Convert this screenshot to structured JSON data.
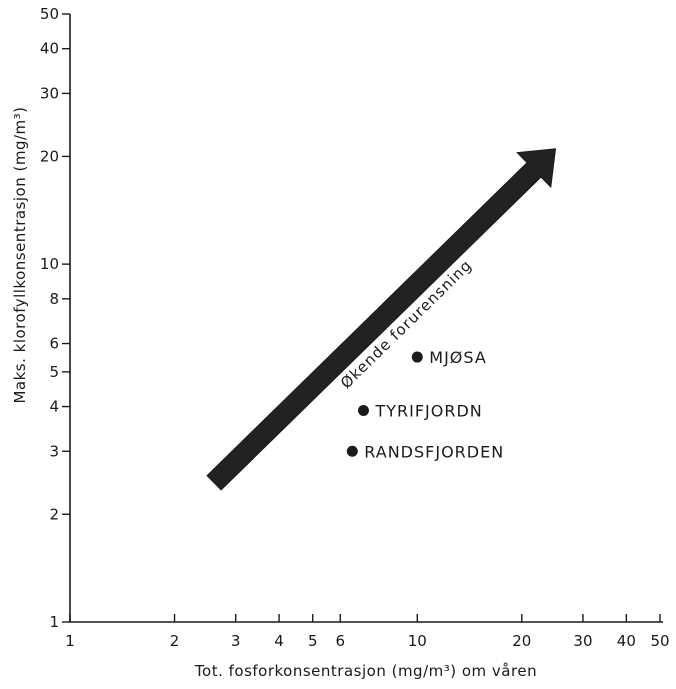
{
  "chart_data": {
    "type": "scatter",
    "title": "",
    "xlabel": "Tot. fosforkonsentrasjon (mg/m³)  om  våren",
    "ylabel": "Maks. klorofyllkonsentrasjon (mg/m³)",
    "x_scale": "log",
    "y_scale": "log",
    "xlim": [
      1,
      50
    ],
    "ylim": [
      1,
      50
    ],
    "x_ticks": [
      1,
      2,
      3,
      4,
      5,
      6,
      10,
      20,
      30,
      40,
      50
    ],
    "x_tick_labels": [
      "1",
      "2",
      "3",
      "4",
      "5",
      "6",
      "10",
      "20",
      "30",
      "40",
      "50"
    ],
    "y_ticks": [
      1,
      2,
      3,
      4,
      5,
      6,
      8,
      10,
      20,
      30,
      40,
      50
    ],
    "y_tick_labels": [
      "1",
      "2",
      "3",
      "4",
      "5",
      "6",
      "8",
      "10",
      "20",
      "30",
      "40",
      "50"
    ],
    "grid": false,
    "points": [
      {
        "label": "MJØSA",
        "x": 10.0,
        "y": 5.5
      },
      {
        "label": "TYRIFJORDN",
        "x": 7.0,
        "y": 3.9
      },
      {
        "label": "RANDSFJORDEN",
        "x": 6.5,
        "y": 3.0
      }
    ],
    "arrow": {
      "label": "Økende forurensning",
      "from": {
        "x": 2.6,
        "y": 2.45
      },
      "to": {
        "x": 25,
        "y": 21
      }
    },
    "colors": {
      "ink": "#1a1a1a",
      "arrow_fill": "#222222"
    }
  }
}
